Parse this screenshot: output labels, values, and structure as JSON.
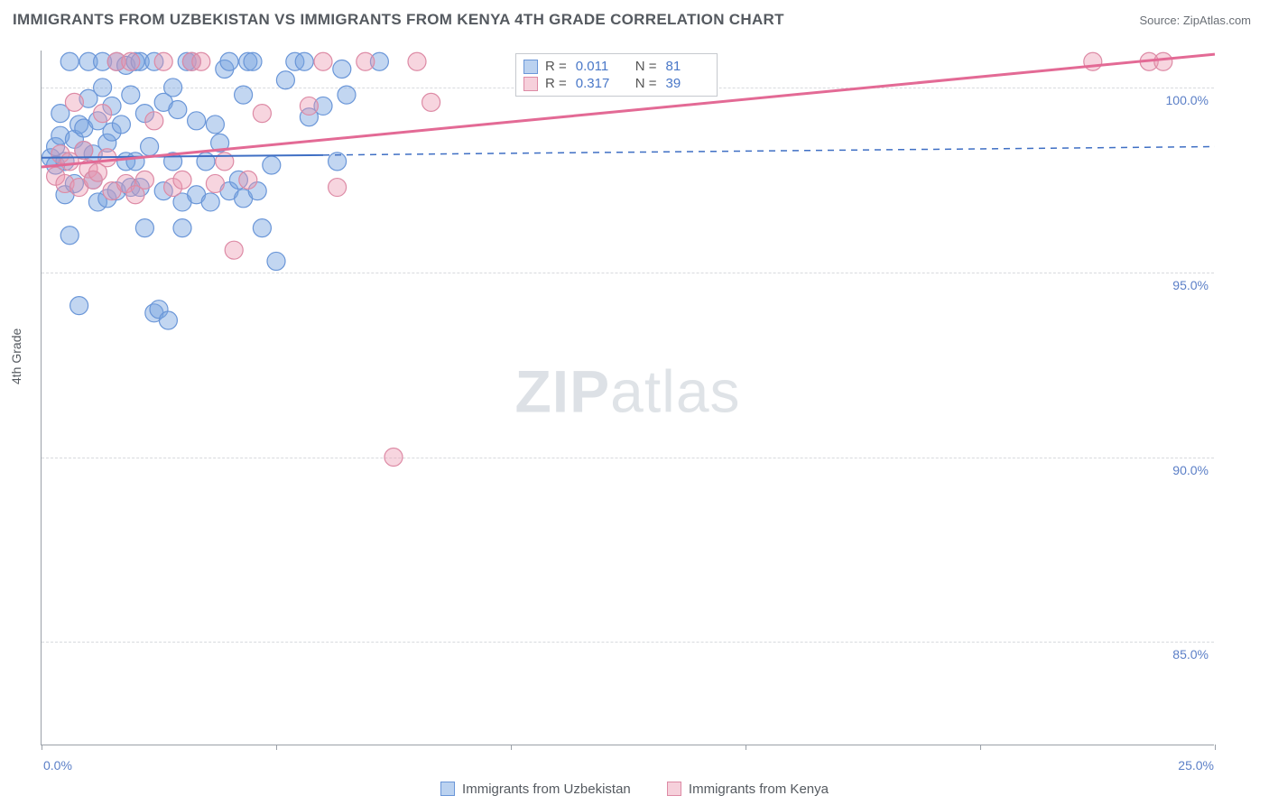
{
  "chart": {
    "type": "scatter-correlation",
    "title": "IMMIGRANTS FROM UZBEKISTAN VS IMMIGRANTS FROM KENYA 4TH GRADE CORRELATION CHART",
    "source": "Source: ZipAtlas.com",
    "ylabel": "4th Grade",
    "watermark": "ZIPatlas",
    "background_color": "#ffffff",
    "grid_color": "#d8dade",
    "axis_color": "#9aa0a8",
    "text_color": "#555a60",
    "value_color": "#5b7fc7",
    "xlim": [
      0.0,
      25.0
    ],
    "ylim": [
      82.2,
      101.0
    ],
    "ytick_labels": [
      "85.0%",
      "90.0%",
      "95.0%",
      "100.0%"
    ],
    "ytick_values": [
      85.0,
      90.0,
      95.0,
      100.0
    ],
    "xtick_values": [
      0,
      5,
      10,
      15,
      20,
      25
    ],
    "x_min_label": "0.0%",
    "x_max_label": "25.0%",
    "series": [
      {
        "name": "Immigrants from Uzbekistan",
        "color_fill": "rgba(120,165,225,0.45)",
        "color_stroke": "#6a96d8",
        "marker_radius": 10,
        "R": "0.011",
        "N": "81",
        "trend": {
          "y0": 98.1,
          "y25": 98.4,
          "solid_to_x": 6.0,
          "color": "#3f6fc4",
          "width": 2
        },
        "points": [
          [
            0.2,
            98.1
          ],
          [
            0.3,
            97.9
          ],
          [
            0.3,
            98.4
          ],
          [
            0.4,
            98.7
          ],
          [
            0.4,
            99.3
          ],
          [
            0.5,
            97.1
          ],
          [
            0.5,
            98.0
          ],
          [
            0.6,
            100.7
          ],
          [
            0.6,
            96.0
          ],
          [
            0.7,
            98.6
          ],
          [
            0.7,
            97.4
          ],
          [
            0.8,
            99.0
          ],
          [
            0.8,
            94.1
          ],
          [
            0.9,
            98.9
          ],
          [
            0.9,
            98.3
          ],
          [
            1.0,
            100.7
          ],
          [
            1.0,
            99.7
          ],
          [
            1.1,
            97.5
          ],
          [
            1.1,
            98.2
          ],
          [
            1.2,
            96.9
          ],
          [
            1.2,
            99.1
          ],
          [
            1.3,
            100.7
          ],
          [
            1.3,
            100.0
          ],
          [
            1.4,
            98.5
          ],
          [
            1.4,
            97.0
          ],
          [
            1.5,
            99.5
          ],
          [
            1.5,
            98.8
          ],
          [
            1.6,
            100.7
          ],
          [
            1.6,
            97.2
          ],
          [
            1.7,
            99.0
          ],
          [
            1.8,
            98.0
          ],
          [
            1.8,
            100.6
          ],
          [
            1.9,
            97.3
          ],
          [
            1.9,
            99.8
          ],
          [
            2.0,
            100.7
          ],
          [
            2.0,
            98.0
          ],
          [
            2.1,
            100.7
          ],
          [
            2.1,
            97.3
          ],
          [
            2.2,
            99.3
          ],
          [
            2.2,
            96.2
          ],
          [
            2.3,
            98.4
          ],
          [
            2.4,
            100.7
          ],
          [
            2.4,
            93.9
          ],
          [
            2.5,
            94.0
          ],
          [
            2.6,
            99.6
          ],
          [
            2.6,
            97.2
          ],
          [
            2.7,
            93.7
          ],
          [
            2.8,
            100.0
          ],
          [
            2.8,
            98.0
          ],
          [
            2.9,
            99.4
          ],
          [
            3.0,
            96.2
          ],
          [
            3.0,
            96.9
          ],
          [
            3.1,
            100.7
          ],
          [
            3.2,
            100.7
          ],
          [
            3.3,
            99.1
          ],
          [
            3.3,
            97.1
          ],
          [
            3.5,
            98.0
          ],
          [
            3.6,
            96.9
          ],
          [
            3.7,
            99.0
          ],
          [
            3.8,
            98.5
          ],
          [
            3.9,
            100.5
          ],
          [
            4.0,
            100.7
          ],
          [
            4.0,
            97.2
          ],
          [
            4.2,
            97.5
          ],
          [
            4.3,
            99.8
          ],
          [
            4.3,
            97.0
          ],
          [
            4.4,
            100.7
          ],
          [
            4.5,
            100.7
          ],
          [
            4.6,
            97.2
          ],
          [
            4.7,
            96.2
          ],
          [
            4.9,
            97.9
          ],
          [
            5.0,
            95.3
          ],
          [
            5.2,
            100.2
          ],
          [
            5.4,
            100.7
          ],
          [
            5.6,
            100.7
          ],
          [
            5.7,
            99.2
          ],
          [
            6.0,
            99.5
          ],
          [
            6.3,
            98.0
          ],
          [
            6.4,
            100.5
          ],
          [
            6.5,
            99.8
          ],
          [
            7.2,
            100.7
          ]
        ]
      },
      {
        "name": "Immigrants from Kenya",
        "color_fill": "rgba(235,150,175,0.4)",
        "color_stroke": "#dd8aa5",
        "marker_radius": 10,
        "R": "0.317",
        "N": "39",
        "trend": {
          "y0": 97.85,
          "y25": 100.9,
          "solid_to_x": 25.0,
          "color": "#e36a95",
          "width": 3
        },
        "points": [
          [
            0.3,
            97.6
          ],
          [
            0.4,
            98.2
          ],
          [
            0.5,
            97.4
          ],
          [
            0.6,
            98.0
          ],
          [
            0.7,
            99.6
          ],
          [
            0.8,
            97.3
          ],
          [
            0.9,
            98.3
          ],
          [
            1.0,
            97.8
          ],
          [
            1.1,
            97.5
          ],
          [
            1.2,
            97.7
          ],
          [
            1.3,
            99.3
          ],
          [
            1.4,
            98.1
          ],
          [
            1.5,
            97.2
          ],
          [
            1.6,
            100.7
          ],
          [
            1.8,
            97.4
          ],
          [
            1.9,
            100.7
          ],
          [
            2.0,
            97.1
          ],
          [
            2.2,
            97.5
          ],
          [
            2.4,
            99.1
          ],
          [
            2.6,
            100.7
          ],
          [
            2.8,
            97.3
          ],
          [
            3.0,
            97.5
          ],
          [
            3.2,
            100.7
          ],
          [
            3.4,
            100.7
          ],
          [
            3.7,
            97.4
          ],
          [
            3.9,
            98.0
          ],
          [
            4.1,
            95.6
          ],
          [
            4.4,
            97.5
          ],
          [
            4.7,
            99.3
          ],
          [
            5.7,
            99.5
          ],
          [
            6.0,
            100.7
          ],
          [
            6.3,
            97.3
          ],
          [
            6.9,
            100.7
          ],
          [
            7.5,
            90.0
          ],
          [
            8.0,
            100.7
          ],
          [
            8.3,
            99.6
          ],
          [
            22.4,
            100.7
          ],
          [
            23.6,
            100.7
          ],
          [
            23.9,
            100.7
          ]
        ]
      }
    ],
    "legend": {
      "stats_labels": {
        "R": "R =",
        "N": "N ="
      }
    }
  }
}
